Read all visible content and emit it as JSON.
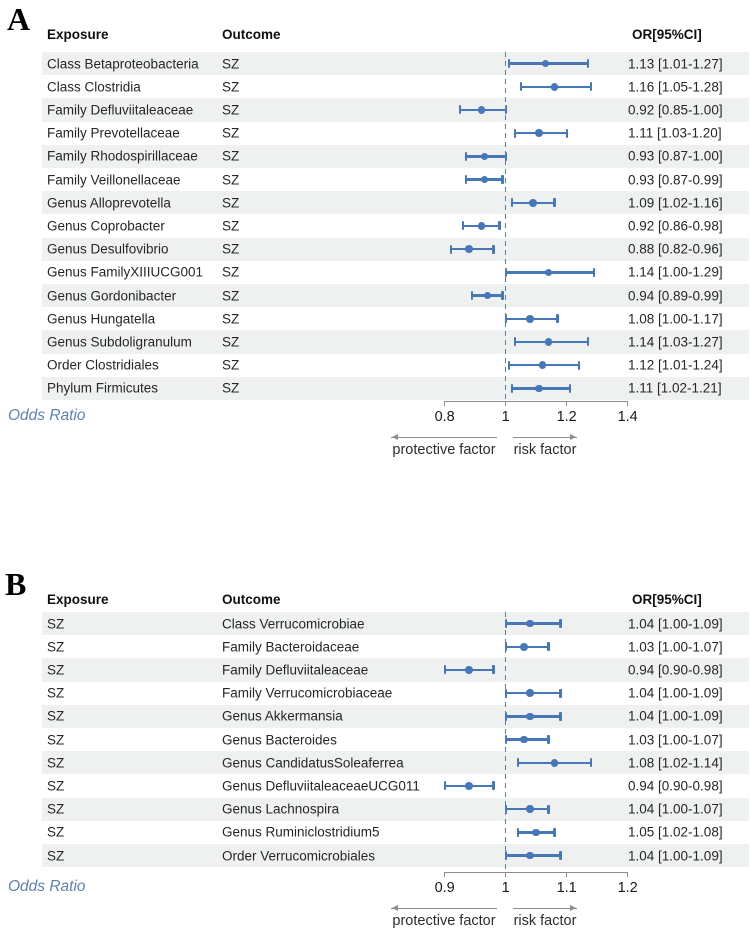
{
  "colors": {
    "marker_blue": "#4677b8",
    "reference_dash_blue": "#4f80c4",
    "row_stripe": "#eef1f0",
    "axis_gray": "#8c8c8c",
    "odds_ratio_label_blue": "#5c80b8"
  },
  "panels": [
    {
      "id": "A",
      "letter": "A",
      "columns": {
        "exposure": "Exposure",
        "outcome": "Outcome",
        "or": "OR[95%CI]"
      },
      "odds_ratio_label": "Odds Ratio",
      "protective_label": "protective factor",
      "risk_label": "risk factor",
      "axis": {
        "ticks": [
          0.8,
          1,
          1.2,
          1.4
        ],
        "tick_labels": [
          "0.8",
          "1",
          "1.2",
          "1.4"
        ],
        "reference": 1
      },
      "rows": [
        {
          "exposure": "Class Betaproteobacteria",
          "outcome": "SZ",
          "or": 1.13,
          "lo": 1.01,
          "hi": 1.27,
          "or_text": "1.13 [1.01-1.27]"
        },
        {
          "exposure": "Class Clostridia",
          "outcome": "SZ",
          "or": 1.16,
          "lo": 1.05,
          "hi": 1.28,
          "or_text": "1.16 [1.05-1.28]"
        },
        {
          "exposure": "Family Defluviitaleaceae",
          "outcome": "SZ",
          "or": 0.92,
          "lo": 0.85,
          "hi": 1.0,
          "or_text": "0.92 [0.85-1.00]"
        },
        {
          "exposure": "Family Prevotellaceae",
          "outcome": "SZ",
          "or": 1.11,
          "lo": 1.03,
          "hi": 1.2,
          "or_text": "1.11 [1.03-1.20]"
        },
        {
          "exposure": "Family Rhodospirillaceae",
          "outcome": "SZ",
          "or": 0.93,
          "lo": 0.87,
          "hi": 1.0,
          "or_text": "0.93 [0.87-1.00]"
        },
        {
          "exposure": "Family Veillonellaceae",
          "outcome": "SZ",
          "or": 0.93,
          "lo": 0.87,
          "hi": 0.99,
          "or_text": "0.93 [0.87-0.99]"
        },
        {
          "exposure": "Genus Alloprevotella",
          "outcome": "SZ",
          "or": 1.09,
          "lo": 1.02,
          "hi": 1.16,
          "or_text": "1.09 [1.02-1.16]"
        },
        {
          "exposure": "Genus Coprobacter",
          "outcome": "SZ",
          "or": 0.92,
          "lo": 0.86,
          "hi": 0.98,
          "or_text": "0.92 [0.86-0.98]"
        },
        {
          "exposure": "Genus Desulfovibrio",
          "outcome": "SZ",
          "or": 0.88,
          "lo": 0.82,
          "hi": 0.96,
          "or_text": "0.88 [0.82-0.96]"
        },
        {
          "exposure": "Genus FamilyXIIIUCG001",
          "outcome": "SZ",
          "or": 1.14,
          "lo": 1.0,
          "hi": 1.29,
          "or_text": "1.14 [1.00-1.29]"
        },
        {
          "exposure": "Genus Gordonibacter",
          "outcome": "SZ",
          "or": 0.94,
          "lo": 0.89,
          "hi": 0.99,
          "or_text": "0.94 [0.89-0.99]"
        },
        {
          "exposure": "Genus Hungatella",
          "outcome": "SZ",
          "or": 1.08,
          "lo": 1.0,
          "hi": 1.17,
          "or_text": "1.08 [1.00-1.17]"
        },
        {
          "exposure": "Genus Subdoligranulum",
          "outcome": "SZ",
          "or": 1.14,
          "lo": 1.03,
          "hi": 1.27,
          "or_text": "1.14 [1.03-1.27]"
        },
        {
          "exposure": "Order Clostridiales",
          "outcome": "SZ",
          "or": 1.12,
          "lo": 1.01,
          "hi": 1.24,
          "or_text": "1.12 [1.01-1.24]"
        },
        {
          "exposure": "Phylum Firmicutes",
          "outcome": "SZ",
          "or": 1.11,
          "lo": 1.02,
          "hi": 1.21,
          "or_text": "1.11 [1.02-1.21]"
        }
      ]
    },
    {
      "id": "B",
      "letter": "B",
      "columns": {
        "exposure": "Exposure",
        "outcome": "Outcome",
        "or": "OR[95%CI]"
      },
      "odds_ratio_label": "Odds Ratio",
      "protective_label": "protective factor",
      "risk_label": "risk factor",
      "axis": {
        "ticks": [
          0.9,
          1,
          1.1,
          1.2
        ],
        "tick_labels": [
          "0.9",
          "1",
          "1.1",
          "1.2"
        ],
        "reference": 1
      },
      "rows": [
        {
          "exposure": "SZ",
          "outcome": "Class Verrucomicrobiae",
          "or": 1.04,
          "lo": 1.0,
          "hi": 1.09,
          "or_text": "1.04 [1.00-1.09]"
        },
        {
          "exposure": "SZ",
          "outcome": "Family Bacteroidaceae",
          "or": 1.03,
          "lo": 1.0,
          "hi": 1.07,
          "or_text": "1.03 [1.00-1.07]"
        },
        {
          "exposure": "SZ",
          "outcome": "Family Defluviitaleaceae",
          "or": 0.94,
          "lo": 0.9,
          "hi": 0.98,
          "or_text": "0.94 [0.90-0.98]"
        },
        {
          "exposure": "SZ",
          "outcome": "Family Verrucomicrobiaceae",
          "or": 1.04,
          "lo": 1.0,
          "hi": 1.09,
          "or_text": "1.04 [1.00-1.09]"
        },
        {
          "exposure": "SZ",
          "outcome": "Genus Akkermansia",
          "or": 1.04,
          "lo": 1.0,
          "hi": 1.09,
          "or_text": "1.04 [1.00-1.09]"
        },
        {
          "exposure": "SZ",
          "outcome": "Genus Bacteroides",
          "or": 1.03,
          "lo": 1.0,
          "hi": 1.07,
          "or_text": "1.03 [1.00-1.07]"
        },
        {
          "exposure": "SZ",
          "outcome": "Genus CandidatusSoleaferrea",
          "or": 1.08,
          "lo": 1.02,
          "hi": 1.14,
          "or_text": "1.08 [1.02-1.14]"
        },
        {
          "exposure": "SZ",
          "outcome": "Genus DefluviitaleaceaeUCG011",
          "or": 0.94,
          "lo": 0.9,
          "hi": 0.98,
          "or_text": "0.94 [0.90-0.98]"
        },
        {
          "exposure": "SZ",
          "outcome": "Genus Lachnospira",
          "or": 1.04,
          "lo": 1.0,
          "hi": 1.07,
          "or_text": "1.04 [1.00-1.07]"
        },
        {
          "exposure": "SZ",
          "outcome": "Genus Ruminiclostridium5",
          "or": 1.05,
          "lo": 1.02,
          "hi": 1.08,
          "or_text": "1.05 [1.02-1.08]"
        },
        {
          "exposure": "SZ",
          "outcome": "Order Verrucomicrobiales",
          "or": 1.04,
          "lo": 1.0,
          "hi": 1.09,
          "or_text": "1.04 [1.00-1.09]"
        }
      ]
    }
  ],
  "chart_data": [
    {
      "type": "scatter",
      "subtype": "forest_plot",
      "panel": "A",
      "title": "",
      "xlabel": "Odds Ratio",
      "xlim": [
        0.8,
        1.4
      ],
      "xticks": [
        0.8,
        1,
        1.2,
        1.4
      ],
      "reference_line": 1,
      "grid": false,
      "outcome": "SZ",
      "annotations": [
        "protective factor",
        "risk factor"
      ],
      "categories": [
        "Class Betaproteobacteria",
        "Class Clostridia",
        "Family Defluviitaleaceae",
        "Family Prevotellaceae",
        "Family Rhodospirillaceae",
        "Family Veillonellaceae",
        "Genus Alloprevotella",
        "Genus Coprobacter",
        "Genus Desulfovibrio",
        "Genus FamilyXIIIUCG001",
        "Genus Gordonibacter",
        "Genus Hungatella",
        "Genus Subdoligranulum",
        "Order Clostridiales",
        "Phylum Firmicutes"
      ],
      "series": [
        {
          "name": "OR",
          "values": [
            1.13,
            1.16,
            0.92,
            1.11,
            0.93,
            0.93,
            1.09,
            0.92,
            0.88,
            1.14,
            0.94,
            1.08,
            1.14,
            1.12,
            1.11
          ]
        },
        {
          "name": "CI_lower",
          "values": [
            1.01,
            1.05,
            0.85,
            1.03,
            0.87,
            0.87,
            1.02,
            0.86,
            0.82,
            1.0,
            0.89,
            1.0,
            1.03,
            1.01,
            1.02
          ]
        },
        {
          "name": "CI_upper",
          "values": [
            1.27,
            1.28,
            1.0,
            1.2,
            1.0,
            0.99,
            1.16,
            0.98,
            0.96,
            1.29,
            0.99,
            1.17,
            1.27,
            1.24,
            1.21
          ]
        }
      ]
    },
    {
      "type": "scatter",
      "subtype": "forest_plot",
      "panel": "B",
      "title": "",
      "xlabel": "Odds Ratio",
      "xlim": [
        0.9,
        1.2
      ],
      "xticks": [
        0.9,
        1,
        1.1,
        1.2
      ],
      "reference_line": 1,
      "grid": false,
      "exposure": "SZ",
      "annotations": [
        "protective factor",
        "risk factor"
      ],
      "categories": [
        "Class Verrucomicrobiae",
        "Family Bacteroidaceae",
        "Family Defluviitaleaceae",
        "Family Verrucomicrobiaceae",
        "Genus Akkermansia",
        "Genus Bacteroides",
        "Genus CandidatusSoleaferrea",
        "Genus DefluviitaleaceaeUCG011",
        "Genus Lachnospira",
        "Genus Ruminiclostridium5",
        "Order Verrucomicrobiales"
      ],
      "series": [
        {
          "name": "OR",
          "values": [
            1.04,
            1.03,
            0.94,
            1.04,
            1.04,
            1.03,
            1.08,
            0.94,
            1.04,
            1.05,
            1.04
          ]
        },
        {
          "name": "CI_lower",
          "values": [
            1.0,
            1.0,
            0.9,
            1.0,
            1.0,
            1.0,
            1.02,
            0.9,
            1.0,
            1.02,
            1.0
          ]
        },
        {
          "name": "CI_upper",
          "values": [
            1.09,
            1.07,
            0.98,
            1.09,
            1.09,
            1.07,
            1.14,
            0.98,
            1.07,
            1.08,
            1.09
          ]
        }
      ]
    }
  ]
}
